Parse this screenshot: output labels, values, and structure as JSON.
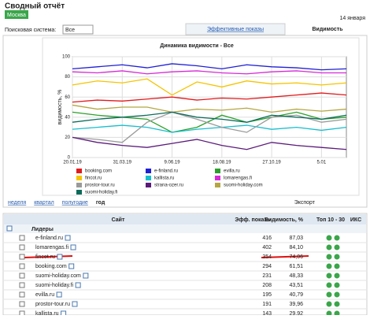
{
  "header": {
    "title": "Сводный отчёт",
    "region": "Москва",
    "date": "14 января",
    "search_label": "Поисковая система:",
    "search_value": "Все",
    "tabs": [
      "Эффективные показы",
      "Видимость"
    ]
  },
  "chart_data": {
    "type": "line",
    "title": "Динамика видимости - Все",
    "y_label": "видимость, %",
    "categories": [
      "20.01.19",
      null,
      "31.03.19",
      null,
      "9.06.19",
      null,
      "18.08.19",
      null,
      "27.10.19",
      null,
      "5.01",
      null
    ],
    "ylim": [
      0,
      100
    ],
    "yticks": [
      0,
      20,
      40,
      60,
      80,
      100
    ],
    "grid": true,
    "series": [
      {
        "name": "booking.com",
        "color": "#e31a1c",
        "values": [
          55,
          57,
          56,
          58,
          60,
          57,
          59,
          58,
          60,
          62,
          64,
          62
        ]
      },
      {
        "name": "e-finland.ru",
        "color": "#1f1fd6",
        "values": [
          88,
          90,
          92,
          89,
          93,
          91,
          88,
          92,
          90,
          89,
          87,
          88
        ]
      },
      {
        "name": "evilla.ru",
        "color": "#2ca02c",
        "values": [
          45,
          42,
          40,
          38,
          25,
          30,
          42,
          35,
          40,
          45,
          38,
          40
        ]
      },
      {
        "name": "fincot.ru",
        "color": "#f5c400",
        "values": [
          72,
          76,
          74,
          78,
          62,
          75,
          70,
          76,
          73,
          74,
          72,
          74
        ]
      },
      {
        "name": "kallista.ru",
        "color": "#17becf",
        "values": [
          28,
          30,
          32,
          30,
          25,
          28,
          30,
          32,
          28,
          30,
          27,
          30
        ]
      },
      {
        "name": "lomarengas.fi",
        "color": "#d62ad6",
        "values": [
          85,
          84,
          86,
          83,
          85,
          86,
          84,
          83,
          85,
          86,
          84,
          84
        ]
      },
      {
        "name": "prostor-tour.ru",
        "color": "#9a9a9a",
        "values": [
          20,
          18,
          15,
          35,
          45,
          38,
          30,
          25,
          40,
          42,
          35,
          38
        ]
      },
      {
        "name": "strana-ozer.ru",
        "color": "#5b1a7a",
        "values": [
          20,
          15,
          12,
          10,
          14,
          18,
          12,
          8,
          15,
          12,
          10,
          8
        ]
      },
      {
        "name": "suomi-holiday.com",
        "color": "#b5a642",
        "values": [
          52,
          48,
          50,
          50,
          45,
          48,
          47,
          49,
          45,
          48,
          46,
          48
        ]
      },
      {
        "name": "suomi-holiday.fi",
        "color": "#0b6b5b",
        "values": [
          35,
          38,
          40,
          42,
          45,
          40,
          38,
          35,
          42,
          40,
          38,
          42
        ]
      }
    ]
  },
  "periods": [
    "неделя",
    "квартал",
    "полугодие",
    "год"
  ],
  "export": "Экспорт",
  "table": {
    "columns": [
      "Сайт",
      "Эфф. показы",
      "Видимость, %",
      "Топ 10 - 30",
      "ИКС"
    ],
    "group": "Лидеры",
    "rows": [
      [
        "e-finland.ru",
        "416",
        "87,03"
      ],
      [
        "lomarengas.fi",
        "402",
        "84,10"
      ],
      [
        "fincot.ru",
        "354",
        "74,06"
      ],
      [
        "booking.com",
        "294",
        "61,51"
      ],
      [
        "suomi-holiday.com",
        "231",
        "48,33"
      ],
      [
        "suomi-holiday.fi",
        "208",
        "43,51"
      ],
      [
        "evilla.ru",
        "195",
        "40,79"
      ],
      [
        "prostor-tour.ru",
        "191",
        "39,96"
      ],
      [
        "kallista.ru",
        "143",
        "29,92"
      ]
    ]
  }
}
